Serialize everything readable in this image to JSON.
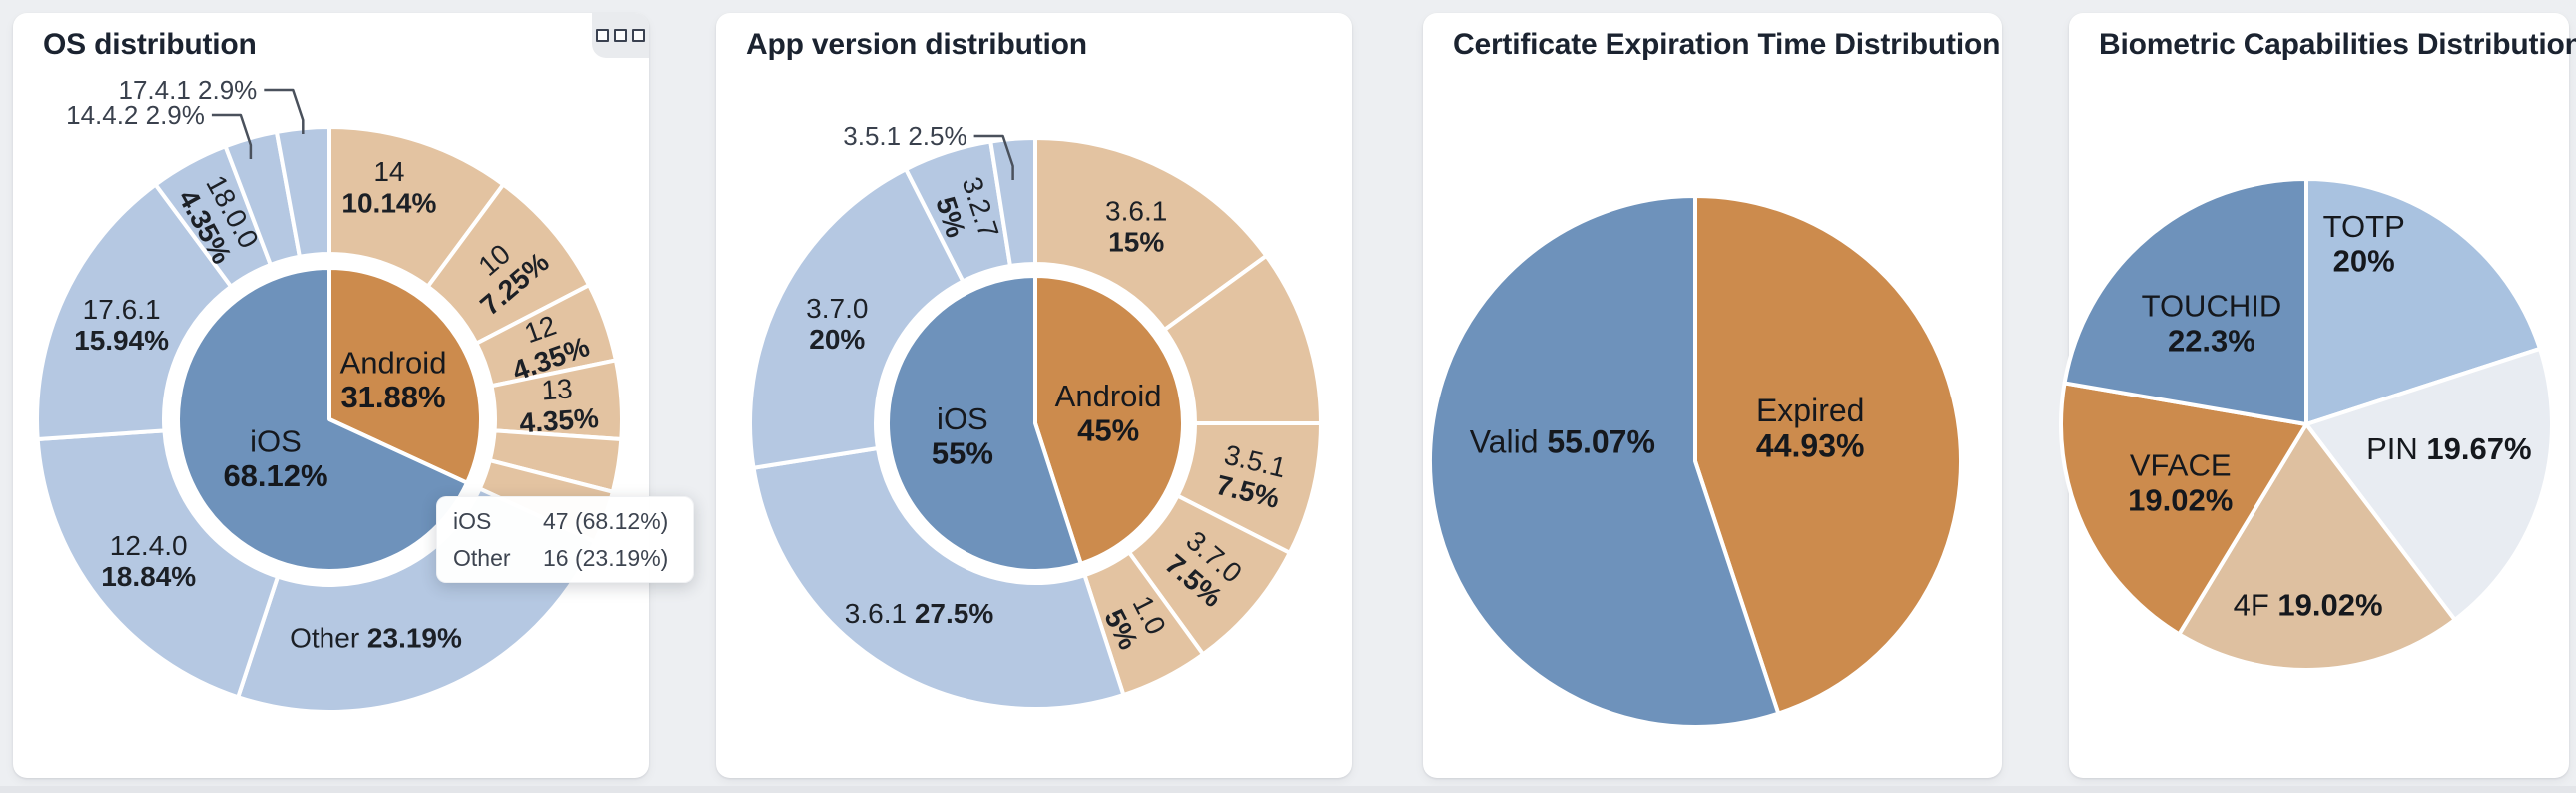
{
  "page": {
    "background": "#edeff2"
  },
  "palette": {
    "steel_blue": "#6e92bb",
    "orange": "#cc8b4d",
    "light_blue": "#b5c8e2",
    "tan": "#e3c3a1",
    "totp_blue": "#a9c2e0",
    "pin_gray": "#e8ecf2",
    "four_f_tan": "#dec0a0"
  },
  "chart_data": [
    {
      "type": "sunburst",
      "title": "OS distribution",
      "legend_position": "none",
      "inner_ring": [
        {
          "name": "Android",
          "value": 31.88,
          "pct": "31.88%",
          "color": "#cc8b4d"
        },
        {
          "name": "iOS",
          "value": 68.12,
          "pct": "68.12%",
          "color": "#6e92bb"
        }
      ],
      "outer_ring": [
        {
          "name": "14",
          "value": 10.14,
          "pct": "10.14%",
          "color": "#e3c3a1",
          "label_mode": "h2"
        },
        {
          "name": "10",
          "value": 7.25,
          "pct": "7.25%",
          "color": "#e3c3a1",
          "label_mode": "r2"
        },
        {
          "name": "12",
          "value": 4.35,
          "pct": "4.35%",
          "color": "#e3c3a1",
          "label_mode": "r2"
        },
        {
          "name": "13",
          "value": 4.35,
          "pct": "4.35%",
          "color": "#e3c3a1",
          "label_mode": "r2"
        },
        {
          "name": "",
          "value": 2.9,
          "pct": "",
          "color": "#e3c3a1",
          "label_mode": "none"
        },
        {
          "name": "",
          "value": 2.89,
          "pct": "",
          "color": "#e3c3a1",
          "label_mode": "none"
        },
        {
          "name": "Other",
          "value": 23.19,
          "pct": "23.19%",
          "color": "#b5c8e2",
          "label_mode": "h1"
        },
        {
          "name": "12.4.0",
          "value": 18.84,
          "pct": "18.84%",
          "color": "#b5c8e2",
          "label_mode": "h2"
        },
        {
          "name": "17.6.1",
          "value": 15.94,
          "pct": "15.94%",
          "color": "#b5c8e2",
          "label_mode": "h2"
        },
        {
          "name": "18.0.0",
          "value": 4.35,
          "pct": "4.35%",
          "color": "#b5c8e2",
          "label_mode": "r2"
        },
        {
          "name": "14.4.2",
          "value": 2.9,
          "pct": "2.9%",
          "color": "#b5c8e2",
          "label_mode": "out",
          "row": 1
        },
        {
          "name": "17.4.1",
          "value": 2.9,
          "pct": "2.9%",
          "color": "#b5c8e2",
          "label_mode": "out",
          "row": 0
        }
      ],
      "tooltip": {
        "rows": [
          {
            "label": "iOS",
            "value": "47 (68.12%)"
          },
          {
            "label": "Other",
            "value": "16 (23.19%)"
          }
        ]
      }
    },
    {
      "type": "sunburst",
      "title": "App version distribution",
      "legend_position": "none",
      "inner_ring": [
        {
          "name": "Android",
          "value": 45,
          "pct": "45%",
          "color": "#cc8b4d"
        },
        {
          "name": "iOS",
          "value": 55,
          "pct": "55%",
          "color": "#6e92bb"
        }
      ],
      "outer_ring": [
        {
          "name": "3.6.1",
          "value": 15,
          "pct": "15%",
          "color": "#e3c3a1",
          "label_mode": "h2"
        },
        {
          "name": "",
          "value": 10,
          "pct": "",
          "color": "#e3c3a1",
          "label_mode": "none"
        },
        {
          "name": "3.5.1",
          "value": 7.5,
          "pct": "7.5%",
          "color": "#e3c3a1",
          "label_mode": "r2"
        },
        {
          "name": "3.7.0",
          "value": 7.5,
          "pct": "7.5%",
          "color": "#e3c3a1",
          "label_mode": "r2"
        },
        {
          "name": "1.0",
          "value": 5,
          "pct": "5%",
          "color": "#e3c3a1",
          "label_mode": "r2"
        },
        {
          "name": "3.6.1",
          "value": 27.5,
          "pct": "27.5%",
          "color": "#b5c8e2",
          "label_mode": "h1"
        },
        {
          "name": "3.7.0",
          "value": 20,
          "pct": "20%",
          "color": "#b5c8e2",
          "label_mode": "h2"
        },
        {
          "name": "3.2.7",
          "value": 5,
          "pct": "5%",
          "color": "#b5c8e2",
          "label_mode": "r2"
        },
        {
          "name": "3.5.1",
          "value": 2.5,
          "pct": "2.5%",
          "color": "#b5c8e2",
          "label_mode": "out",
          "row": 0
        }
      ]
    },
    {
      "type": "pie",
      "title": "Certificate Expiration Time Distribution",
      "legend_position": "none",
      "slices": [
        {
          "name": "Expired",
          "value": 44.93,
          "pct": "44.93%",
          "color": "#cc8b4d",
          "label_mode": "h2"
        },
        {
          "name": "Valid",
          "value": 55.07,
          "pct": "55.07%",
          "color": "#6e92bb",
          "label_mode": "h1"
        }
      ]
    },
    {
      "type": "pie",
      "title": "Biometric Capabilities Distribution",
      "legend_position": "none",
      "slices": [
        {
          "name": "TOTP",
          "value": 20,
          "pct": "20%",
          "color": "#a9c2e0",
          "label_mode": "h2"
        },
        {
          "name": "PIN",
          "value": 19.67,
          "pct": "19.67%",
          "color": "#e8ecf2",
          "label_mode": "h1"
        },
        {
          "name": "4F",
          "value": 19.02,
          "pct": "19.02%",
          "color": "#dec0a0",
          "label_mode": "h1"
        },
        {
          "name": "VFACE",
          "value": 19.02,
          "pct": "19.02%",
          "color": "#cc8b4d",
          "label_mode": "h2"
        },
        {
          "name": "TOUCHID",
          "value": 22.3,
          "pct": "22.3%",
          "color": "#6e92bb",
          "label_mode": "h2"
        }
      ]
    }
  ]
}
